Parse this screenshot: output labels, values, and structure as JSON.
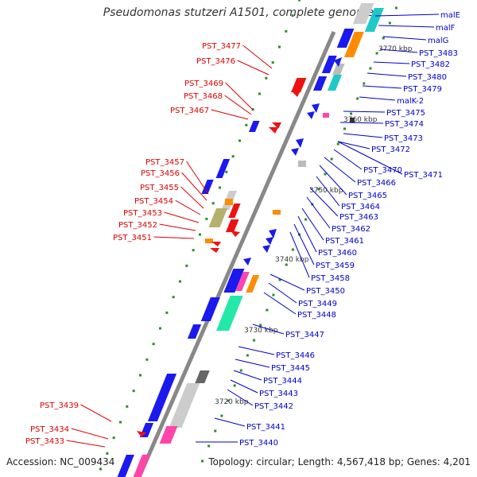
{
  "title": "Pseudomonas stutzeri A1501, complete genome",
  "accession": "Accession: NC_009434",
  "summary": "Topology: circular; Length: 4,567,418 bp; Genes: 4,201",
  "colors": {
    "forward_label": "#0000cc",
    "reverse_label": "#dd0000",
    "gene_forward": "#1a1aee",
    "gene_reverse": "#ee1111",
    "backbone": "#888888",
    "tick_mark": "#2e8b2e"
  },
  "kbp_ticks": [
    {
      "label": "3770 kbp"
    },
    {
      "label": "3760 kbp"
    },
    {
      "label": "3750 kbp"
    },
    {
      "label": "3740 kbp"
    },
    {
      "label": "3730 kbp"
    },
    {
      "label": "3720 kbp"
    }
  ],
  "forward_labels": [
    {
      "text": "malE"
    },
    {
      "text": "malF"
    },
    {
      "text": "malG"
    },
    {
      "text": "PST_3483"
    },
    {
      "text": "PST_3482"
    },
    {
      "text": "PST_3480"
    },
    {
      "text": "PST_3479"
    },
    {
      "text": "malK-2"
    },
    {
      "text": "PST_3475"
    },
    {
      "text": "PST_3474"
    },
    {
      "text": "PST_3473"
    },
    {
      "text": "PST_3472"
    },
    {
      "text": "PST_3471"
    },
    {
      "text": "PST_3470"
    },
    {
      "text": "PST_3466"
    },
    {
      "text": "PST_3465"
    },
    {
      "text": "PST_3464"
    },
    {
      "text": "PST_3463"
    },
    {
      "text": "PST_3462"
    },
    {
      "text": "PST_3461"
    },
    {
      "text": "PST_3460"
    },
    {
      "text": "PST_3459"
    },
    {
      "text": "PST_3458"
    },
    {
      "text": "PST_3450"
    },
    {
      "text": "PST_3449"
    },
    {
      "text": "PST_3448"
    },
    {
      "text": "PST_3447"
    },
    {
      "text": "PST_3446"
    },
    {
      "text": "PST_3445"
    },
    {
      "text": "PST_3444"
    },
    {
      "text": "PST_3443"
    },
    {
      "text": "PST_3442"
    },
    {
      "text": "PST_3441"
    },
    {
      "text": "PST_3440"
    }
  ],
  "reverse_labels": [
    {
      "text": "PST_3477"
    },
    {
      "text": "PST_3476"
    },
    {
      "text": "PST_3469"
    },
    {
      "text": "PST_3468"
    },
    {
      "text": "PST_3467"
    },
    {
      "text": "PST_3457"
    },
    {
      "text": "PST_3456"
    },
    {
      "text": "PST_3455"
    },
    {
      "text": "PST_3454"
    },
    {
      "text": "PST_3453"
    },
    {
      "text": "PST_3452"
    },
    {
      "text": "PST_3451"
    },
    {
      "text": "PST_3439"
    },
    {
      "text": "PST_3434"
    },
    {
      "text": "PST_3433"
    }
  ]
}
